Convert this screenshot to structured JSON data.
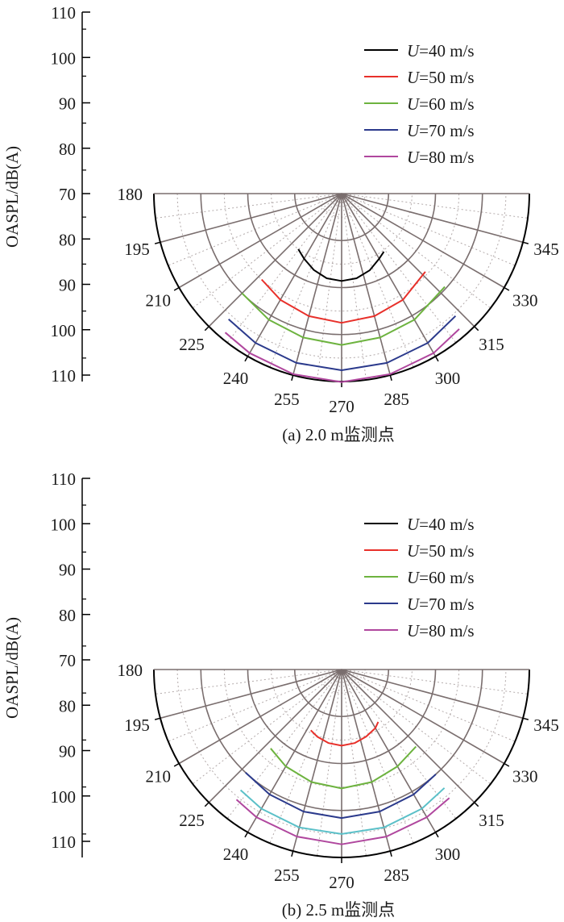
{
  "figure": {
    "panels": [
      {
        "caption": "(a) 2.0 m监测点"
      },
      {
        "caption": "(b) 2.5 m监测点"
      }
    ]
  },
  "legend": [
    {
      "prefix": "U",
      "suffix": "=40 m/s",
      "color": "#000000"
    },
    {
      "prefix": "U",
      "suffix": "=50 m/s",
      "color": "#e8302a"
    },
    {
      "prefix": "U",
      "suffix": "=60 m/s",
      "color": "#6db33f"
    },
    {
      "prefix": "U",
      "suffix": "=70 m/s",
      "color": "#2b3a8c"
    },
    {
      "prefix": "U",
      "suffix": "=80 m/s",
      "color": "#b0479e"
    }
  ],
  "chart_data": [
    {
      "type": "polar",
      "caption": "(a) 2.0 m监测点",
      "ylabel": "OASPL/dB(A)",
      "ylim": [
        70,
        110
      ],
      "yticks": [
        110,
        100,
        90,
        80,
        70,
        80,
        90,
        100,
        110
      ],
      "angle_ticks": [
        180,
        195,
        210,
        225,
        240,
        255,
        270,
        285,
        300,
        315,
        330,
        345
      ],
      "grid": true,
      "legend_position": "top-right",
      "series": [
        {
          "name": "U=40 m/s",
          "color": "#000000",
          "angles": [
            232,
            240,
            250,
            260,
            270,
            280,
            290,
            300,
            306
          ],
          "values": [
            85.0,
            86.0,
            87.3,
            88.3,
            88.6,
            88.3,
            87.4,
            86.0,
            85.3
          ]
        },
        {
          "name": "U=50 m/s",
          "color": "#e8302a",
          "angles": [
            227,
            240,
            255,
            270,
            285,
            300,
            317
          ],
          "values": [
            95.0,
            96.1,
            97.0,
            97.5,
            97.0,
            96.1,
            94.4
          ]
        },
        {
          "name": "U=60 m/s",
          "color": "#6db33f",
          "angles": [
            225,
            240,
            255,
            270,
            285,
            300,
            318
          ],
          "values": [
            100.0,
            101.0,
            101.7,
            102.2,
            101.7,
            101.0,
            99.6
          ]
        },
        {
          "name": "U=70 m/s",
          "color": "#2b3a8c",
          "angles": [
            228,
            240,
            255,
            270,
            285,
            300,
            313
          ],
          "values": [
            106.0,
            106.7,
            107.3,
            107.6,
            107.3,
            106.7,
            105.6
          ]
        },
        {
          "name": "U=80 m/s",
          "color": "#b0479e",
          "angles": [
            230,
            240,
            255,
            270,
            285,
            300,
            311
          ],
          "values": [
            108.6,
            109.2,
            109.8,
            110.1,
            109.8,
            109.2,
            108.2
          ]
        }
      ]
    },
    {
      "type": "polar",
      "caption": "(b) 2.5 m监测点",
      "ylabel": "OASPL/dB(A)",
      "ylim": [
        70,
        110
      ],
      "yticks": [
        110,
        100,
        90,
        80,
        70,
        80,
        90,
        100,
        110
      ],
      "angle_ticks": [
        180,
        195,
        210,
        225,
        240,
        255,
        270,
        285,
        300,
        315,
        330,
        345
      ],
      "grid": true,
      "legend_position": "top-right",
      "series": [
        {
          "name": "U=50 m/s",
          "color": "#e8302a",
          "angles": [
            243,
            250,
            260,
            270,
            280,
            290,
            300,
            305
          ],
          "values": [
            84.5,
            85.2,
            85.9,
            86.2,
            85.9,
            85.2,
            84.4,
            83.6
          ]
        },
        {
          "name": "U=60 m/s",
          "color": "#6db33f",
          "angles": [
            228,
            240,
            255,
            270,
            285,
            300,
            314
          ],
          "values": [
            92.6,
            93.8,
            94.8,
            95.3,
            94.8,
            93.8,
            92.8
          ]
        },
        {
          "name": "U=70 m/s",
          "color": "#2b3a8c",
          "angles": [
            227,
            240,
            255,
            270,
            285,
            300,
            312
          ],
          "values": [
            100.0,
            100.7,
            101.3,
            101.6,
            101.3,
            100.7,
            100.0
          ]
        },
        {
          "name": "",
          "color": "#5bc0c8",
          "angles": [
            230,
            240,
            255,
            270,
            285,
            300,
            311
          ],
          "values": [
            103.5,
            104.2,
            104.8,
            105.0,
            104.8,
            104.2,
            103.4
          ]
        },
        {
          "name": "U=80 m/s",
          "color": "#b0479e",
          "angles": [
            231,
            240,
            255,
            270,
            285,
            300,
            310
          ],
          "values": [
            105.6,
            106.3,
            106.8,
            107.2,
            106.8,
            106.3,
            105.7
          ]
        }
      ]
    }
  ]
}
